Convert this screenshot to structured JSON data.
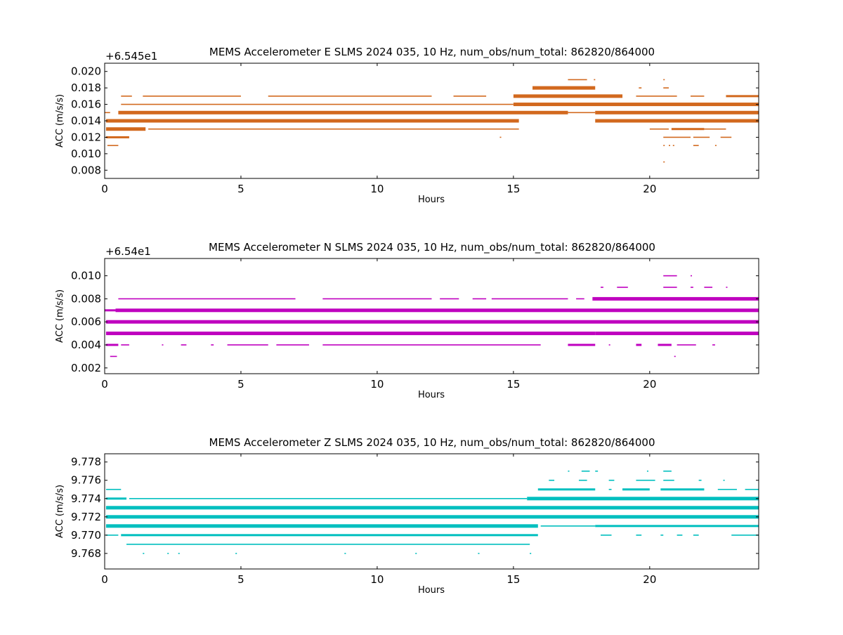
{
  "chart_data": [
    {
      "type": "scatter",
      "title": "MEMS Accelerometer E SLMS 2024 035, 10 Hz, num_obs/num_total: 862820/864000",
      "xlabel": "Hours",
      "ylabel": "ACC (m/s/s)",
      "offset_text": "+6.545e1",
      "xlim": [
        0,
        24
      ],
      "ylim": [
        0.007,
        0.021
      ],
      "xticks": [
        0,
        5,
        10,
        15,
        20
      ],
      "xtick_labels": [
        "0",
        "5",
        "10",
        "15",
        "20"
      ],
      "yticks": [
        0.008,
        0.01,
        0.012,
        0.014,
        0.016,
        0.018,
        0.02
      ],
      "ytick_labels": [
        "0.008",
        "0.010",
        "0.012",
        "0.014",
        "0.016",
        "0.018",
        "0.020"
      ],
      "color": "#d2691e",
      "grid": false,
      "series": [
        {
          "level": 0.009,
          "segments": [
            [
              20.5,
              20.52,
              "dot"
            ]
          ]
        },
        {
          "level": 0.011,
          "segments": [
            [
              0.1,
              0.5,
              "light"
            ],
            [
              20.5,
              20.52,
              "dot"
            ],
            [
              20.7,
              20.72,
              "dot"
            ],
            [
              20.85,
              20.87,
              "dot"
            ],
            [
              21.6,
              21.8,
              "light"
            ],
            [
              22.4,
              22.42,
              "dot"
            ]
          ]
        },
        {
          "level": 0.012,
          "segments": [
            [
              0.05,
              0.9,
              "medium"
            ],
            [
              14.5,
              14.52,
              "dot"
            ],
            [
              20.5,
              21.5,
              "light"
            ],
            [
              21.6,
              22.2,
              "light"
            ],
            [
              22.6,
              23.0,
              "light"
            ]
          ]
        },
        {
          "level": 0.013,
          "segments": [
            [
              0.05,
              1.5,
              "heavy"
            ],
            [
              1.6,
              15.2,
              "light"
            ],
            [
              20.0,
              20.7,
              "light"
            ],
            [
              20.8,
              22.0,
              "medium"
            ],
            [
              22.0,
              22.8,
              "light"
            ]
          ]
        },
        {
          "level": 0.014,
          "segments": [
            [
              0.05,
              15.2,
              "heavy"
            ],
            [
              18.0,
              24.0,
              "heavy"
            ]
          ]
        },
        {
          "level": 0.015,
          "segments": [
            [
              0.0,
              0.2,
              "light"
            ],
            [
              0.5,
              17.0,
              "heavy"
            ],
            [
              17.0,
              18.0,
              "light"
            ],
            [
              18.0,
              24.0,
              "heavy"
            ]
          ]
        },
        {
          "level": 0.016,
          "segments": [
            [
              0.6,
              15.0,
              "light"
            ],
            [
              15.0,
              24.0,
              "heavy"
            ]
          ]
        },
        {
          "level": 0.017,
          "segments": [
            [
              0.6,
              1.0,
              "dot"
            ],
            [
              1.4,
              5.0,
              "light"
            ],
            [
              6.0,
              12.0,
              "light"
            ],
            [
              12.8,
              14.0,
              "light"
            ],
            [
              15.0,
              19.0,
              "heavy"
            ],
            [
              19.5,
              21.0,
              "light"
            ],
            [
              21.5,
              22.0,
              "light"
            ],
            [
              22.8,
              24.0,
              "medium"
            ]
          ]
        },
        {
          "level": 0.018,
          "segments": [
            [
              15.7,
              18.0,
              "heavy"
            ],
            [
              19.6,
              19.7,
              "light"
            ],
            [
              20.5,
              20.7,
              "light"
            ]
          ]
        },
        {
          "level": 0.019,
          "segments": [
            [
              17.0,
              17.7,
              "light"
            ],
            [
              17.95,
              18.0,
              "dot"
            ],
            [
              20.5,
              20.52,
              "dot"
            ]
          ]
        }
      ]
    },
    {
      "type": "scatter",
      "title": "MEMS Accelerometer N SLMS 2024 035, 10 Hz, num_obs/num_total: 862820/864000",
      "xlabel": "Hours",
      "ylabel": "ACC (m/s/s)",
      "offset_text": "+6.54e1",
      "xlim": [
        0,
        24
      ],
      "ylim": [
        0.0015,
        0.0115
      ],
      "xticks": [
        0,
        5,
        10,
        15,
        20
      ],
      "xtick_labels": [
        "0",
        "5",
        "10",
        "15",
        "20"
      ],
      "yticks": [
        0.002,
        0.004,
        0.006,
        0.008,
        0.01
      ],
      "ytick_labels": [
        "0.002",
        "0.004",
        "0.006",
        "0.008",
        "0.010"
      ],
      "color": "#bf00bf",
      "grid": false,
      "series": [
        {
          "level": 0.003,
          "segments": [
            [
              0.2,
              0.45,
              "light"
            ],
            [
              20.9,
              20.92,
              "dot"
            ]
          ]
        },
        {
          "level": 0.004,
          "segments": [
            [
              0.05,
              0.5,
              "medium"
            ],
            [
              0.6,
              0.9,
              "light"
            ],
            [
              2.1,
              2.15,
              "dot"
            ],
            [
              2.8,
              3.0,
              "light"
            ],
            [
              3.9,
              4.0,
              "dot"
            ],
            [
              4.5,
              6.0,
              "light"
            ],
            [
              6.3,
              7.5,
              "light"
            ],
            [
              8.0,
              16.0,
              "light"
            ],
            [
              17.0,
              18.0,
              "medium"
            ],
            [
              18.5,
              18.55,
              "dot"
            ],
            [
              19.5,
              19.7,
              "medium"
            ],
            [
              20.3,
              20.8,
              "medium"
            ],
            [
              21.0,
              21.7,
              "light"
            ],
            [
              22.3,
              22.4,
              "dot"
            ]
          ]
        },
        {
          "level": 0.005,
          "segments": [
            [
              0.05,
              18.0,
              "heavy"
            ],
            [
              18.0,
              24.0,
              "heavy"
            ]
          ]
        },
        {
          "level": 0.006,
          "segments": [
            [
              0.05,
              24.0,
              "heavy"
            ]
          ]
        },
        {
          "level": 0.007,
          "segments": [
            [
              0.0,
              0.4,
              "medium"
            ],
            [
              0.4,
              24.0,
              "heavy"
            ]
          ]
        },
        {
          "level": 0.008,
          "segments": [
            [
              0.5,
              7.0,
              "light"
            ],
            [
              8.0,
              12.0,
              "light"
            ],
            [
              12.3,
              13.0,
              "light"
            ],
            [
              13.5,
              14.0,
              "light"
            ],
            [
              14.2,
              17.0,
              "light"
            ],
            [
              17.3,
              17.6,
              "dot"
            ],
            [
              17.9,
              24.0,
              "heavy"
            ]
          ]
        },
        {
          "level": 0.009,
          "segments": [
            [
              18.2,
              18.3,
              "light"
            ],
            [
              18.8,
              19.2,
              "light"
            ],
            [
              20.5,
              21.0,
              "light"
            ],
            [
              21.5,
              21.6,
              "dot"
            ],
            [
              22.0,
              22.3,
              "light"
            ],
            [
              22.8,
              22.85,
              "dot"
            ]
          ]
        },
        {
          "level": 0.01,
          "segments": [
            [
              20.5,
              21.0,
              "light"
            ],
            [
              21.5,
              21.55,
              "dot"
            ]
          ]
        }
      ]
    },
    {
      "type": "scatter",
      "title": "MEMS Accelerometer Z SLMS 2024 035, 10 Hz, num_obs/num_total: 862820/864000",
      "xlabel": "Hours",
      "ylabel": "ACC (m/s/s)",
      "offset_text": "",
      "xlim": [
        0,
        24
      ],
      "ylim": [
        9.7663,
        9.7789
      ],
      "xticks": [
        0,
        5,
        10,
        15,
        20
      ],
      "xtick_labels": [
        "0",
        "5",
        "10",
        "15",
        "20"
      ],
      "yticks": [
        9.768,
        9.77,
        9.772,
        9.774,
        9.776,
        9.778
      ],
      "ytick_labels": [
        "9.768",
        "9.770",
        "9.772",
        "9.774",
        "9.776",
        "9.778"
      ],
      "color": "#00bfbf",
      "grid": false,
      "series": [
        {
          "level": 9.768,
          "segments": [
            [
              1.4,
              1.42,
              "dot"
            ],
            [
              2.3,
              2.32,
              "dot"
            ],
            [
              2.7,
              2.72,
              "dot"
            ],
            [
              4.8,
              4.82,
              "dot"
            ],
            [
              8.8,
              8.82,
              "dot"
            ],
            [
              11.4,
              11.42,
              "dot"
            ],
            [
              13.7,
              13.72,
              "dot"
            ],
            [
              15.6,
              15.62,
              "dot"
            ]
          ]
        },
        {
          "level": 9.769,
          "segments": [
            [
              0.8,
              15.6,
              "light"
            ]
          ]
        },
        {
          "level": 9.77,
          "segments": [
            [
              0.05,
              0.5,
              "light"
            ],
            [
              0.6,
              15.9,
              "medium"
            ],
            [
              18.2,
              18.6,
              "light"
            ],
            [
              19.5,
              19.7,
              "light"
            ],
            [
              20.4,
              20.5,
              "light"
            ],
            [
              21.0,
              21.2,
              "light"
            ],
            [
              21.6,
              21.8,
              "dot"
            ],
            [
              23.0,
              24.0,
              "light"
            ]
          ]
        },
        {
          "level": 9.771,
          "segments": [
            [
              0.05,
              15.9,
              "heavy"
            ],
            [
              16.0,
              18.0,
              "light"
            ],
            [
              18.0,
              24.0,
              "medium"
            ]
          ]
        },
        {
          "level": 9.772,
          "segments": [
            [
              0.05,
              24.0,
              "heavy"
            ]
          ]
        },
        {
          "level": 9.773,
          "segments": [
            [
              0.05,
              24.0,
              "heavy"
            ]
          ]
        },
        {
          "level": 9.774,
          "segments": [
            [
              0.05,
              0.8,
              "medium"
            ],
            [
              0.9,
              15.5,
              "light"
            ],
            [
              15.5,
              24.0,
              "heavy"
            ]
          ]
        },
        {
          "level": 9.775,
          "segments": [
            [
              0.05,
              0.6,
              "light"
            ],
            [
              15.9,
              18.0,
              "medium"
            ],
            [
              18.5,
              18.6,
              "dot"
            ],
            [
              19.0,
              20.0,
              "medium"
            ],
            [
              20.4,
              22.0,
              "medium"
            ],
            [
              22.5,
              23.2,
              "light"
            ],
            [
              23.5,
              24.0,
              "light"
            ]
          ]
        },
        {
          "level": 9.776,
          "segments": [
            [
              16.3,
              16.5,
              "light"
            ],
            [
              17.4,
              17.7,
              "light"
            ],
            [
              18.5,
              18.7,
              "light"
            ],
            [
              19.5,
              20.2,
              "light"
            ],
            [
              20.5,
              20.9,
              "light"
            ],
            [
              21.8,
              21.9,
              "light"
            ],
            [
              22.7,
              22.75,
              "dot"
            ]
          ]
        },
        {
          "level": 9.777,
          "segments": [
            [
              17.0,
              17.05,
              "dot"
            ],
            [
              17.5,
              17.8,
              "light"
            ],
            [
              18.0,
              18.1,
              "dot"
            ],
            [
              19.9,
              19.95,
              "dot"
            ],
            [
              20.5,
              20.8,
              "light"
            ]
          ]
        }
      ]
    }
  ]
}
